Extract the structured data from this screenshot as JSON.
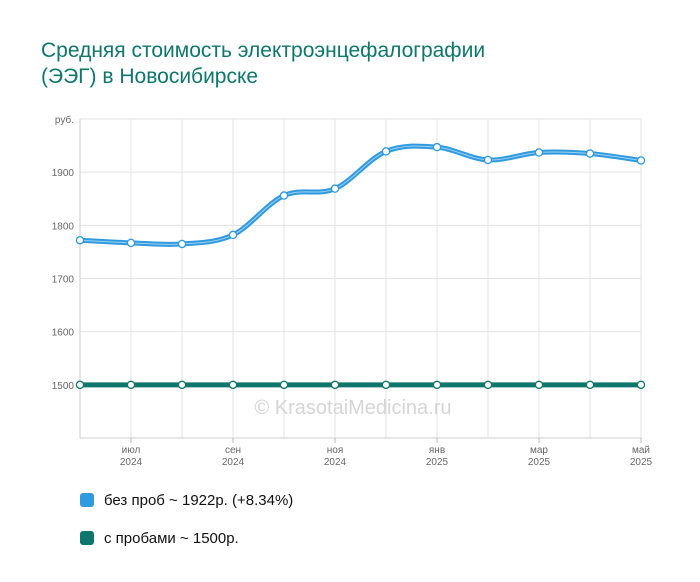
{
  "title_line1": "Средняя стоимость электроэнцефалографии",
  "title_line2": "(ЭЭГ) в Новосибирске",
  "watermark": "© KrasotaiMedicina.ru",
  "chart_data": {
    "type": "line",
    "y_unit_label": "руб.",
    "ylim": [
      1400,
      2000
    ],
    "y_ticks": [
      1500,
      1600,
      1700,
      1800,
      1900
    ],
    "grid": true,
    "x_tick_labels": [
      {
        "index": 1,
        "month": "июл",
        "year": "2024"
      },
      {
        "index": 3,
        "month": "сен",
        "year": "2024"
      },
      {
        "index": 5,
        "month": "ноя",
        "year": "2024"
      },
      {
        "index": 7,
        "month": "янв",
        "year": "2025"
      },
      {
        "index": 9,
        "month": "мар",
        "year": "2025"
      },
      {
        "index": 11,
        "month": "май",
        "year": "2025"
      }
    ],
    "series": [
      {
        "name": "без проб",
        "color": "#2f9ae0",
        "values": [
          1772,
          1767,
          1765,
          1782,
          1856,
          1869,
          1939,
          1947,
          1923,
          1937,
          1935,
          1922
        ]
      },
      {
        "name": "с пробами",
        "color": "#0f766c",
        "values": [
          1500,
          1500,
          1500,
          1500,
          1500,
          1500,
          1500,
          1500,
          1500,
          1500,
          1500,
          1500
        ]
      }
    ],
    "legend": [
      {
        "label": "без проб ~ 1922р. (+8.34%)",
        "color": "#2f9ae0"
      },
      {
        "label": "с пробами ~ 1500р.",
        "color": "#0f766c"
      }
    ],
    "legend_position": "bottom-left"
  }
}
